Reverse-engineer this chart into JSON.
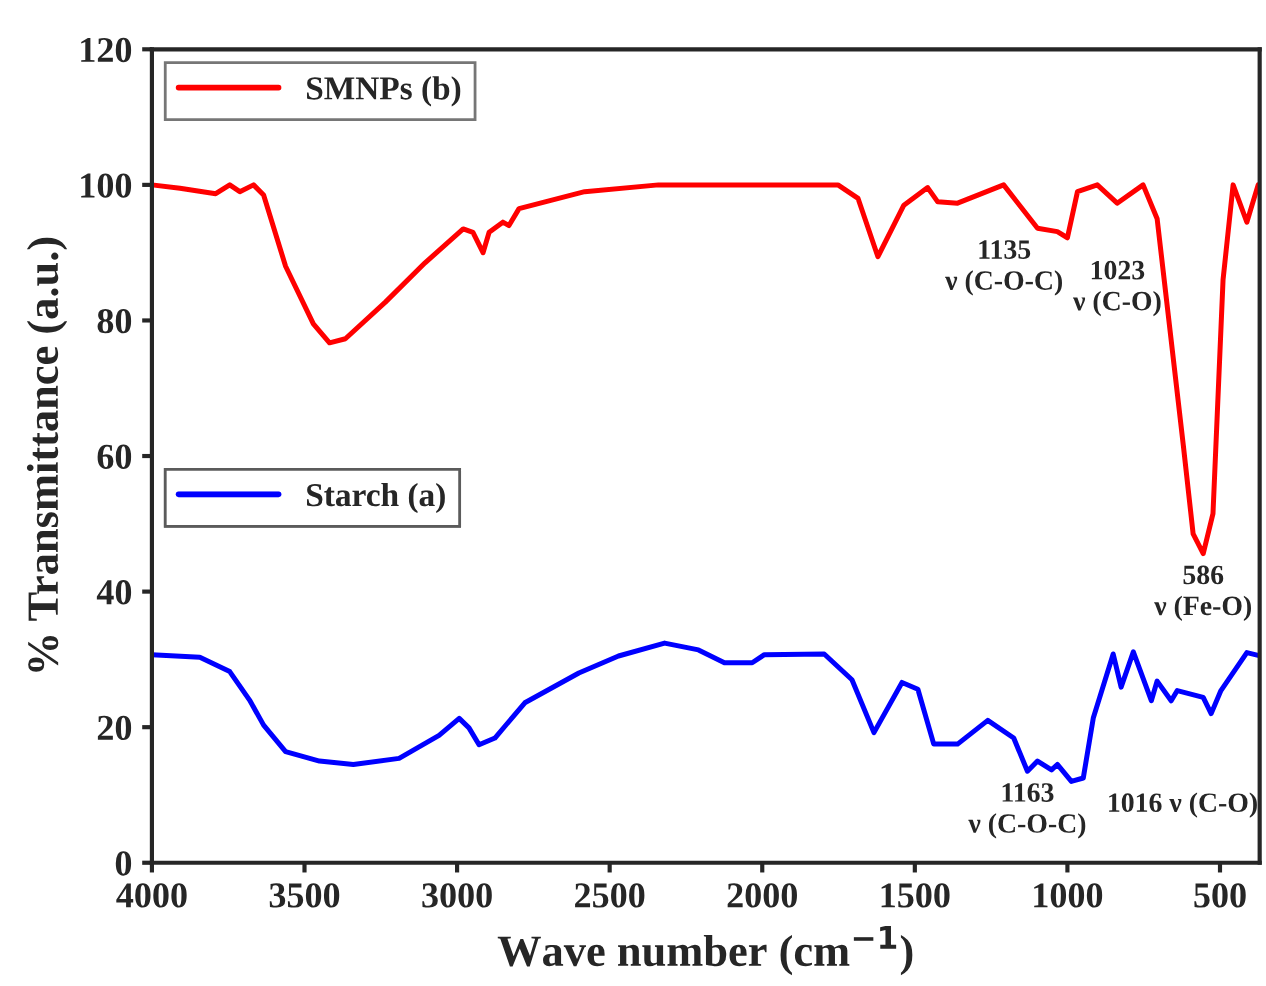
{
  "chart_data": {
    "type": "line",
    "xlabel": "Wave number (cm$^{−1}$)",
    "ylabel": "% Transmittance (a.u.)",
    "xlim": [
      4000,
      370
    ],
    "ylim": [
      0,
      120
    ],
    "xticks": [
      4000,
      3500,
      3000,
      2500,
      2000,
      1500,
      1000,
      500
    ],
    "yticks": [
      0,
      20,
      40,
      60,
      80,
      100,
      120
    ],
    "legend": "top left",
    "grid": false,
    "marker": "none",
    "line_style": "solid",
    "series": [
      {
        "name": "SMNPs (b)",
        "color": "#ff0000",
        "x": [
          4000,
          3908,
          3791,
          3745,
          3712,
          3667,
          3634,
          3562,
          3471,
          3418,
          3366,
          3235,
          3105,
          2980,
          2948,
          2915,
          2895,
          2850,
          2830,
          2797,
          2582,
          2340,
          2209,
          1752,
          1686,
          1621,
          1536,
          1458,
          1425,
          1360,
          1209,
          1098,
          1033,
          1000,
          967,
          902,
          837,
          752,
          706,
          620,
          588,
          555,
          523,
          490,
          457,
          412,
          375
        ],
        "values": [
          100,
          99.5,
          98.7,
          100,
          99,
          100,
          98.5,
          88,
          79.5,
          76.7,
          77.3,
          82.7,
          88.5,
          93.5,
          93,
          90,
          93,
          94.5,
          94,
          96.5,
          99,
          100,
          100,
          100,
          98,
          89.4,
          97,
          99.6,
          97.5,
          97.3,
          100,
          93.6,
          93.1,
          92.2,
          99,
          100,
          97.3,
          100,
          95,
          61.5,
          48.5,
          45.6,
          51.5,
          86,
          100,
          94.5,
          100
        ]
      },
      {
        "name": "Starch (a)",
        "color": "#0000ff",
        "x": [
          4000,
          3843,
          3745,
          3680,
          3634,
          3562,
          3451,
          3340,
          3190,
          3059,
          2993,
          2961,
          2928,
          2876,
          2778,
          2601,
          2471,
          2320,
          2209,
          2124,
          2033,
          1993,
          1797,
          1706,
          1634,
          1542,
          1490,
          1438,
          1360,
          1261,
          1176,
          1131,
          1098,
          1052,
          1033,
          987,
          948,
          915,
          850,
          824,
          784,
          725,
          706,
          660,
          640,
          555,
          529,
          497,
          412,
          375
        ],
        "values": [
          30.7,
          30.3,
          28.2,
          24,
          20.3,
          16.4,
          15,
          14.5,
          15.4,
          18.8,
          21.3,
          19.9,
          17.4,
          18.4,
          23.6,
          28,
          30.5,
          32.4,
          31.4,
          29.5,
          29.5,
          30.7,
          30.8,
          27,
          19.2,
          26.6,
          25.6,
          17.5,
          17.5,
          21,
          18.4,
          13.5,
          15,
          13.7,
          14.5,
          12,
          12.5,
          21.4,
          30.8,
          25.9,
          31.1,
          23.9,
          26.8,
          23.9,
          25.4,
          24.4,
          22,
          25.4,
          31,
          30.6
        ]
      }
    ],
    "annotations": [
      {
        "text": "1135\nν (C-O-C)",
        "x": 1098,
        "y": 93.6
      },
      {
        "text": "1023\nν (C-O)",
        "x": 1000,
        "y": 92.2
      },
      {
        "text": "586\nν (Fe-O)",
        "x": 555,
        "y": 45.6
      },
      {
        "text": "1163\nν (C-O-C)",
        "x": 1131,
        "y": 13.5
      },
      {
        "text": "1016 ν (C-O)",
        "x": 987,
        "y": 12
      }
    ]
  }
}
